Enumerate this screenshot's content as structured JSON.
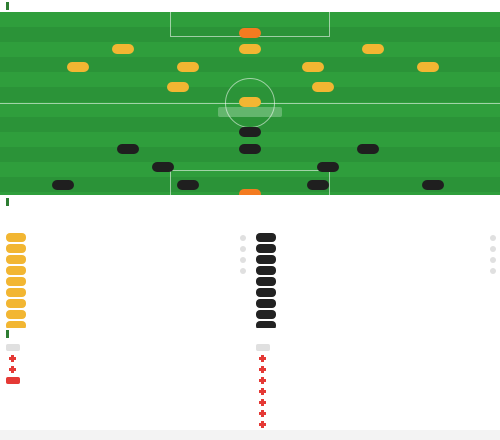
{
  "lineup": {
    "title": "",
    "subtitle": "",
    "home_team": "",
    "away_team": "",
    "home_formation": "",
    "away_formation": "",
    "half_label": "",
    "score_box": "",
    "stats_left": [
      "",
      ""
    ],
    "stats_right": [
      "",
      ""
    ]
  },
  "home_players": [
    {
      "num": "",
      "name": "",
      "kind": "gk"
    },
    {
      "num": "",
      "name": "",
      "kind": "home"
    },
    {
      "num": "",
      "name": "",
      "kind": "home"
    },
    {
      "num": "",
      "name": "",
      "kind": "home"
    },
    {
      "num": "",
      "name": "",
      "kind": "home"
    },
    {
      "num": "",
      "name": "",
      "kind": "home"
    },
    {
      "num": "",
      "name": "",
      "kind": "home"
    },
    {
      "num": "",
      "name": "",
      "kind": "home"
    },
    {
      "num": "",
      "name": "",
      "kind": "home"
    },
    {
      "num": "",
      "name": "",
      "kind": "home"
    },
    {
      "num": "",
      "name": "",
      "kind": "home"
    }
  ],
  "away_players": [
    {
      "num": "",
      "name": "",
      "kind": "away"
    },
    {
      "num": "",
      "name": "",
      "kind": "away"
    },
    {
      "num": "",
      "name": "",
      "kind": "away"
    },
    {
      "num": "",
      "name": "",
      "kind": "away"
    },
    {
      "num": "",
      "name": "",
      "kind": "away"
    },
    {
      "num": "",
      "name": "",
      "kind": "away"
    },
    {
      "num": "",
      "name": "",
      "kind": "away"
    },
    {
      "num": "",
      "name": "",
      "kind": "away"
    },
    {
      "num": "",
      "name": "",
      "kind": "away"
    },
    {
      "num": "",
      "name": "",
      "kind": "away"
    },
    {
      "num": "",
      "name": "",
      "kind": "gk"
    }
  ],
  "subs": {
    "title": "",
    "home": [
      {
        "num": "",
        "name": "",
        "sub": "",
        "kind": "role"
      },
      {
        "num": "",
        "name": "",
        "sub": "",
        "kind": "role"
      },
      {
        "num": "",
        "name": "",
        "sub": "",
        "rating": "",
        "extra": "",
        "kind": "home"
      },
      {
        "num": "",
        "name": "",
        "sub": "",
        "rating": "",
        "extra": "",
        "kind": "home"
      },
      {
        "num": "",
        "name": "",
        "sub": "",
        "rating": "",
        "extra": "",
        "kind": "home"
      },
      {
        "num": "",
        "name": "",
        "sub": "",
        "rating": "",
        "extra": "",
        "kind": "home"
      },
      {
        "num": "",
        "name": "",
        "sub": "",
        "kind": "home"
      },
      {
        "num": "",
        "name": "",
        "sub": "",
        "kind": "home"
      },
      {
        "num": "",
        "name": "",
        "sub": "",
        "kind": "home"
      },
      {
        "num": "",
        "name": "",
        "sub": "",
        "kind": "home"
      },
      {
        "num": "",
        "name": "",
        "sub": "",
        "kind": "home"
      }
    ],
    "away": [
      {
        "num": "",
        "name": "",
        "sub": "",
        "kind": "role"
      },
      {
        "num": "",
        "name": "",
        "sub": "",
        "kind": "role"
      },
      {
        "num": "",
        "name": "",
        "sub": "",
        "rating": "",
        "extra": "",
        "kind": "away"
      },
      {
        "num": "",
        "name": "",
        "sub": "",
        "rating": "",
        "extra": "",
        "kind": "away"
      },
      {
        "num": "",
        "name": "",
        "sub": "",
        "rating": "",
        "extra": "",
        "kind": "away"
      },
      {
        "num": "",
        "name": "",
        "sub": "",
        "rating": "",
        "extra": "",
        "kind": "away"
      },
      {
        "num": "",
        "name": "",
        "sub": "",
        "kind": "away"
      },
      {
        "num": "",
        "name": "",
        "sub": "",
        "kind": "away"
      },
      {
        "num": "",
        "name": "",
        "sub": "",
        "kind": "away"
      },
      {
        "num": "",
        "name": "",
        "sub": "",
        "kind": "away"
      },
      {
        "num": "",
        "name": "",
        "sub": "",
        "kind": "away"
      }
    ]
  },
  "injuries": {
    "title": "",
    "home": [
      {
        "name": "",
        "sub": "",
        "icon": "role"
      },
      {
        "name": "",
        "sub": "",
        "icon": "plus"
      },
      {
        "name": "",
        "sub": "",
        "icon": "plus"
      },
      {
        "name": "",
        "sub": "",
        "icon": "red"
      }
    ],
    "away": [
      {
        "name": "",
        "sub": "",
        "icon": "role"
      },
      {
        "name": "",
        "sub": "",
        "icon": "plus"
      },
      {
        "name": "",
        "sub": "",
        "icon": "plus"
      },
      {
        "name": "",
        "sub": "",
        "icon": "plus"
      },
      {
        "name": "",
        "sub": "",
        "icon": "plus"
      },
      {
        "name": "",
        "sub": "",
        "icon": "plus"
      },
      {
        "name": "",
        "sub": "",
        "icon": "plus"
      },
      {
        "name": "",
        "sub": "",
        "icon": "plus"
      }
    ]
  },
  "colors": {
    "pitch": "#2f9e3c",
    "home_pill": "#f2b632",
    "away_pill": "#1f1f1f",
    "gk_pill": "#f47b20",
    "accent": "#2e7d32"
  }
}
